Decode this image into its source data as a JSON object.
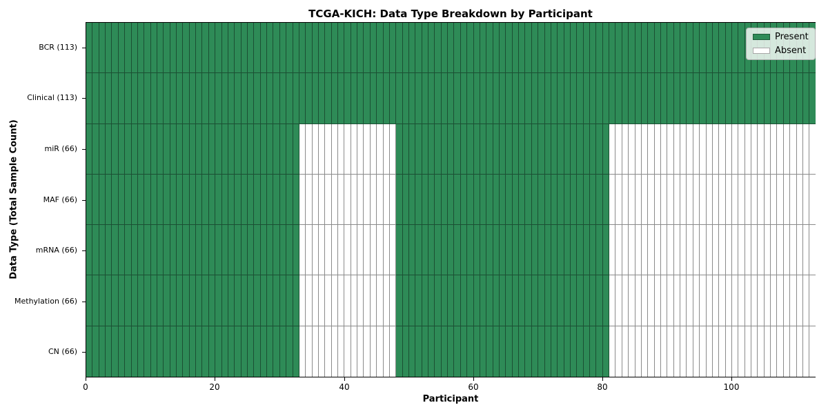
{
  "chart_data": {
    "type": "heatmap",
    "title": "TCGA-KICH: Data Type Breakdown by Participant",
    "xlabel": "Participant",
    "ylabel": "Data Type (Total Sample Count)",
    "x_ticks": [
      0,
      20,
      40,
      60,
      80,
      100
    ],
    "xlim": [
      0,
      113
    ],
    "n_participants": 113,
    "grid": false,
    "legend_position": "upper-right",
    "legend": [
      {
        "label": "Present",
        "color": "#2e8b57"
      },
      {
        "label": "Absent",
        "color": "#ffffff"
      }
    ],
    "rows": [
      {
        "key": "bcr",
        "label": "BCR (113)",
        "present_count": 113,
        "present_ranges": [
          [
            0,
            113
          ]
        ]
      },
      {
        "key": "clinical",
        "label": "Clinical (113)",
        "present_count": 113,
        "present_ranges": [
          [
            0,
            113
          ]
        ]
      },
      {
        "key": "mir",
        "label": "miR (66)",
        "present_count": 66,
        "present_ranges": [
          [
            0,
            33
          ],
          [
            48,
            81
          ]
        ]
      },
      {
        "key": "maf",
        "label": "MAF (66)",
        "present_count": 66,
        "present_ranges": [
          [
            0,
            33
          ],
          [
            48,
            81
          ]
        ]
      },
      {
        "key": "mrna",
        "label": "mRNA (66)",
        "present_count": 66,
        "present_ranges": [
          [
            0,
            33
          ],
          [
            48,
            81
          ]
        ]
      },
      {
        "key": "methylation",
        "label": "Methylation (66)",
        "present_count": 66,
        "present_ranges": [
          [
            0,
            33
          ],
          [
            48,
            81
          ]
        ]
      },
      {
        "key": "cn",
        "label": "CN (66)",
        "present_count": 66,
        "present_ranges": [
          [
            0,
            33
          ],
          [
            48,
            81
          ]
        ]
      }
    ],
    "colors": {
      "present": "#2e8b57",
      "absent": "#ffffff",
      "present_cell_edge": "#1b4f33",
      "absent_cell_edge": "#8a8a8a",
      "axis": "#000000"
    }
  }
}
